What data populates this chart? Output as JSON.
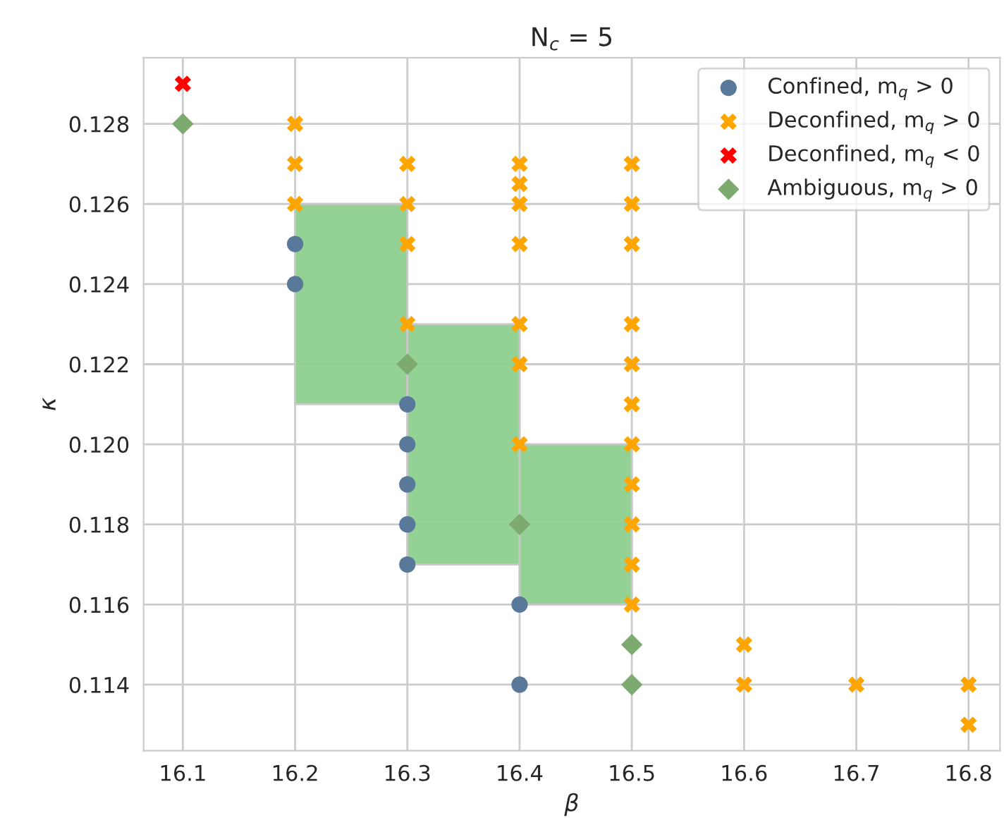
{
  "chart_data": {
    "type": "scatter",
    "title": "N$_{c}$ = 5",
    "xlabel": "β",
    "ylabel": "κ",
    "xlim": [
      16.065,
      16.828
    ],
    "ylim": [
      0.11235,
      0.12965
    ],
    "xticks": [
      16.1,
      16.2,
      16.3,
      16.4,
      16.5,
      16.6,
      16.7,
      16.8
    ],
    "yticks": [
      0.114,
      0.116,
      0.118,
      {
        "value": 0.12,
        "label": "0.120"
      },
      0.122,
      0.124,
      0.126,
      0.128
    ],
    "grid": true,
    "legend": "top right",
    "series": [
      {
        "type": "bar",
        "color": "#8fcf8f",
        "x": [
          16.25,
          16.35,
          16.45
        ],
        "base": [
          0.121,
          0.117,
          0.116
        ],
        "values": [
          0.005,
          0.006,
          0.004
        ]
      },
      {
        "name": "Confined, m$_{q}$ > 0",
        "color": "#59799a",
        "marker": "circle",
        "x": [
          16.2,
          16.2,
          16.3,
          16.3,
          16.3,
          16.3,
          16.3,
          16.4,
          16.4
        ],
        "values": [
          0.125,
          0.124,
          0.121,
          0.12,
          0.119,
          0.118,
          0.117,
          0.116,
          0.114
        ]
      },
      {
        "name": "Deconfined, m$_{q}$ > 0",
        "color": "#ffa500",
        "marker": "cross",
        "x": [
          16.2,
          16.2,
          16.2,
          16.3,
          16.3,
          16.3,
          16.3,
          16.4,
          16.4,
          16.4,
          16.4,
          16.4,
          16.4,
          16.4,
          16.5,
          16.5,
          16.5,
          16.5,
          16.5,
          16.5,
          16.5,
          16.5,
          16.5,
          16.5,
          16.5,
          16.6,
          16.6,
          16.7,
          16.8,
          16.8
        ],
        "values": [
          0.128,
          0.127,
          0.126,
          0.127,
          0.126,
          0.125,
          0.123,
          0.127,
          0.1265,
          0.126,
          0.125,
          0.123,
          0.122,
          0.12,
          0.127,
          0.126,
          0.125,
          0.123,
          0.122,
          0.121,
          0.12,
          0.119,
          0.118,
          0.117,
          0.116,
          0.115,
          0.114,
          0.114,
          0.114,
          0.113
        ]
      },
      {
        "name": "Deconfined, m$_{q}$ < 0",
        "color": "#ff0000",
        "marker": "cross",
        "x": [
          16.1
        ],
        "values": [
          0.129
        ]
      },
      {
        "name": "Ambiguous, m$_{q}$ > 0",
        "color": "#7daa6f",
        "marker": "diamond",
        "x": [
          16.1,
          16.3,
          16.4,
          16.5,
          16.5
        ],
        "values": [
          0.128,
          0.122,
          0.118,
          0.115,
          0.114
        ]
      }
    ]
  }
}
